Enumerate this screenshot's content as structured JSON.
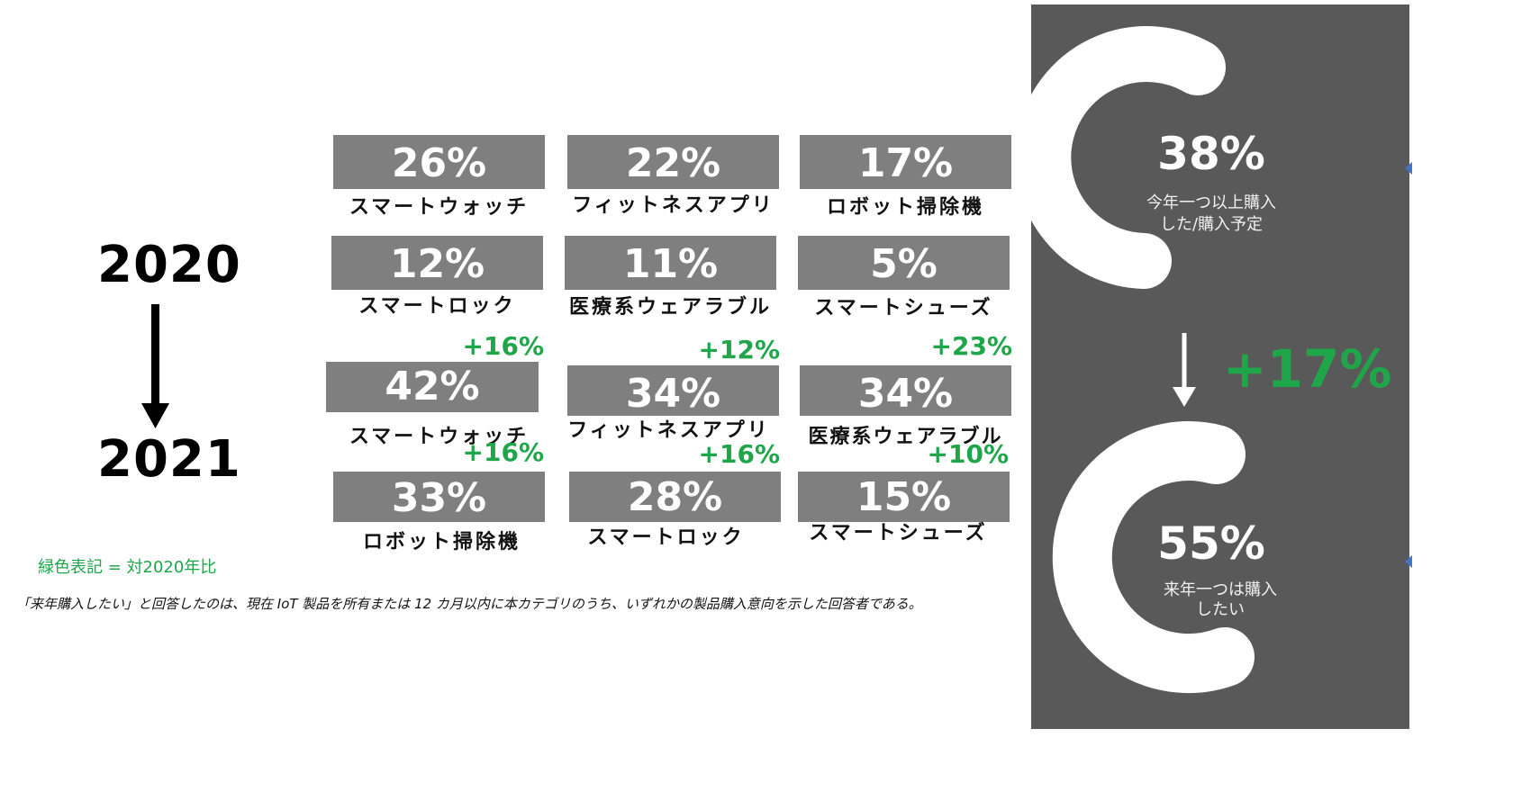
{
  "years": {
    "from": "2020",
    "to": "2021"
  },
  "chart_data": {
    "type": "table",
    "tiles": [
      {
        "year": "2020",
        "category": "スマートウォッチ",
        "value": "26%"
      },
      {
        "year": "2020",
        "category": "フィットネスアプリ",
        "value": "22%"
      },
      {
        "year": "2020",
        "category": "ロボット掃除機",
        "value": "17%"
      },
      {
        "year": "2020",
        "category": "スマートロック",
        "value": "12%"
      },
      {
        "year": "2020",
        "category": "医療系ウェアラブル",
        "value": "11%"
      },
      {
        "year": "2020",
        "category": "スマートシューズ",
        "value": "5%"
      },
      {
        "year": "2021",
        "category": "スマートウォッチ",
        "value": "42%",
        "change": "+16%"
      },
      {
        "year": "2021",
        "category": "フィットネスアプリ",
        "value": "34%",
        "change": "+12%"
      },
      {
        "year": "2021",
        "category": "医療系ウェアラブル",
        "value": "34%",
        "change": "+23%"
      },
      {
        "year": "2021",
        "category": "ロボット掃除機",
        "value": "33%",
        "change": "+16%"
      },
      {
        "year": "2021",
        "category": "スマートロック",
        "value": "28%",
        "change": "+16%"
      },
      {
        "year": "2021",
        "category": "スマートシューズ",
        "value": "15%",
        "change": "+10%"
      }
    ],
    "donuts": [
      {
        "value": "38%",
        "caption_line1": "今年一つ以上購入",
        "caption_line2": "した/購入予定",
        "fraction": 0.38
      },
      {
        "value": "55%",
        "caption_line1": "来年一つは購入",
        "caption_line2": "したい",
        "fraction": 0.55
      }
    ],
    "panel_change": "+17%",
    "legend_note": "緑色表記 = 対2020年比",
    "footnote": "「来年購入したい」と回答したのは、現在 IoT 製品を所有または 12 カ月以内に本カテゴリのうち、いずれかの製品購入意向を示した回答者である。"
  },
  "colors": {
    "tile_gray": "#7f7f7f",
    "panel_gray": "#595959",
    "accent_green": "#1fa64a",
    "arc_white": "#ffffff"
  }
}
